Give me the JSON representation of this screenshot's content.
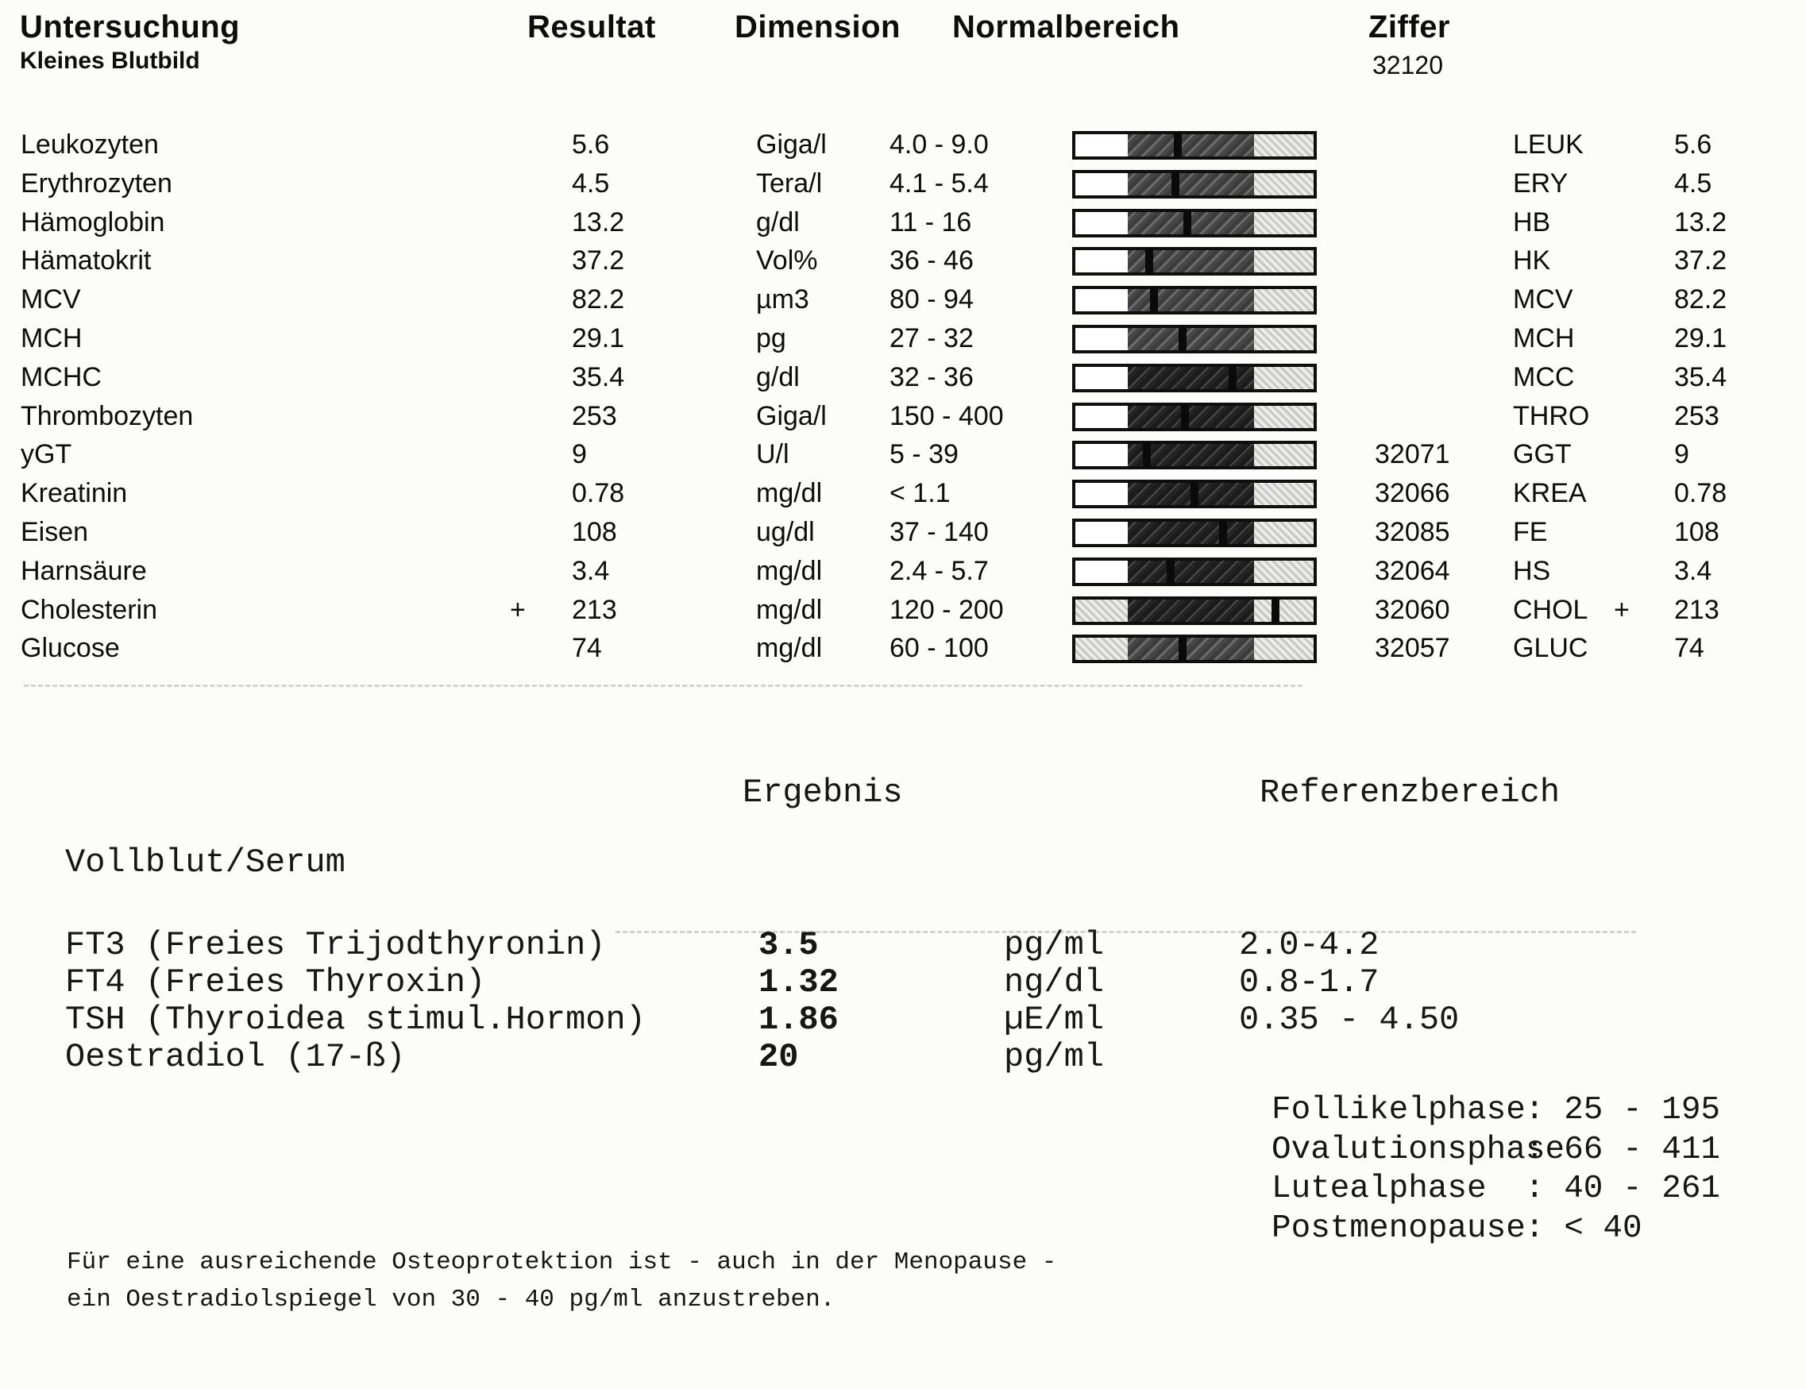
{
  "header": {
    "col_untersuchung": "Untersuchung",
    "subtitle": "Kleines Blutbild",
    "col_resultat": "Resultat",
    "col_dimension": "Dimension",
    "col_normalbereich": "Normalbereich",
    "col_ziffer": "Ziffer",
    "ziffer_value": "32120"
  },
  "blood_table": {
    "rows": [
      {
        "name": "Leukozyten",
        "flag": "",
        "result": "5.6",
        "dimension": "Giga/l",
        "range": "4.0 - 9.0",
        "ziffer": "",
        "code": "LEUK",
        "code_flag": "",
        "code_value": "5.6",
        "marker_pct": 43,
        "dense": false,
        "left_dotted": false
      },
      {
        "name": "Erythrozyten",
        "flag": "",
        "result": "4.5",
        "dimension": "Tera/l",
        "range": "4.1 - 5.4",
        "ziffer": "",
        "code": "ERY",
        "code_flag": "",
        "code_value": "4.5",
        "marker_pct": 42,
        "dense": false,
        "left_dotted": false
      },
      {
        "name": "Hämoglobin",
        "flag": "",
        "result": "13.2",
        "dimension": "g/dl",
        "range": "11 - 16",
        "ziffer": "",
        "code": "HB",
        "code_flag": "",
        "code_value": "13.2",
        "marker_pct": 47,
        "dense": false,
        "left_dotted": false
      },
      {
        "name": "Hämatokrit",
        "flag": "",
        "result": "37.2",
        "dimension": "Vol%",
        "range": "36 - 46",
        "ziffer": "",
        "code": "HK",
        "code_flag": "",
        "code_value": "37.2",
        "marker_pct": 31,
        "dense": false,
        "left_dotted": false
      },
      {
        "name": "MCV",
        "flag": "",
        "result": "82.2",
        "dimension": "µm3",
        "range": "80 - 94",
        "ziffer": "",
        "code": "MCV",
        "code_flag": "",
        "code_value": "82.2",
        "marker_pct": 33,
        "dense": false,
        "left_dotted": false
      },
      {
        "name": "MCH",
        "flag": "",
        "result": "29.1",
        "dimension": "pg",
        "range": "27 - 32",
        "ziffer": "",
        "code": "MCH",
        "code_flag": "",
        "code_value": "29.1",
        "marker_pct": 45,
        "dense": false,
        "left_dotted": false
      },
      {
        "name": "MCHC",
        "flag": "",
        "result": "35.4",
        "dimension": "g/dl",
        "range": "32 - 36",
        "ziffer": "",
        "code": "MCC",
        "code_flag": "",
        "code_value": "35.4",
        "marker_pct": 66,
        "dense": true,
        "left_dotted": false
      },
      {
        "name": "Thrombozyten",
        "flag": "",
        "result": "253",
        "dimension": "Giga/l",
        "range": "150 - 400",
        "ziffer": "",
        "code": "THRO",
        "code_flag": "",
        "code_value": "253",
        "marker_pct": 46,
        "dense": true,
        "left_dotted": false
      },
      {
        "name": "yGT",
        "flag": "",
        "result": "9",
        "dimension": "U/l",
        "range": "5 - 39",
        "ziffer": "32071",
        "code": "GGT",
        "code_flag": "",
        "code_value": "9",
        "marker_pct": 30,
        "dense": true,
        "left_dotted": false
      },
      {
        "name": "Kreatinin",
        "flag": "",
        "result": "0.78",
        "dimension": "mg/dl",
        "range": "< 1.1",
        "ziffer": "32066",
        "code": "KREA",
        "code_flag": "",
        "code_value": "0.78",
        "marker_pct": 50,
        "dense": true,
        "left_dotted": false
      },
      {
        "name": "Eisen",
        "flag": "",
        "result": "108",
        "dimension": "ug/dl",
        "range": "37 - 140",
        "ziffer": "32085",
        "code": "FE",
        "code_flag": "",
        "code_value": "108",
        "marker_pct": 62,
        "dense": true,
        "left_dotted": false
      },
      {
        "name": "Harnsäure",
        "flag": "",
        "result": "3.4",
        "dimension": "mg/dl",
        "range": "2.4 - 5.7",
        "ziffer": "32064",
        "code": "HS",
        "code_flag": "",
        "code_value": "3.4",
        "marker_pct": 40,
        "dense": true,
        "left_dotted": false
      },
      {
        "name": "Cholesterin",
        "flag": "+",
        "result": "213",
        "dimension": "mg/dl",
        "range": "120 - 200",
        "ziffer": "32060",
        "code": "CHOL",
        "code_flag": "+",
        "code_value": "213",
        "marker_pct": 84,
        "dense": true,
        "left_dotted": true
      },
      {
        "name": "Glucose",
        "flag": "",
        "result": "74",
        "dimension": "mg/dl",
        "range": "60 - 100",
        "ziffer": "32057",
        "code": "GLUC",
        "code_flag": "",
        "code_value": "74",
        "marker_pct": 45,
        "dense": false,
        "left_dotted": true
      }
    ]
  },
  "serum_section": {
    "col_ergebnis": "Ergebnis",
    "col_referenzbereich": "Referenzbereich",
    "group_label": "Vollblut/Serum",
    "rows": [
      {
        "name": "FT3 (Freies Trijodthyronin)",
        "result": "3.5",
        "unit": "pg/ml",
        "reference": "2.0-4.2"
      },
      {
        "name": "FT4 (Freies Thyroxin)",
        "result": "1.32",
        "unit": "ng/dl",
        "reference": "0.8-1.7"
      },
      {
        "name": "TSH (Thyroidea stimul.Hormon)",
        "result": "1.86",
        "unit": "µE/ml",
        "reference": "0.35 - 4.50"
      },
      {
        "name": "Oestradiol (17-ß)",
        "result": "20",
        "unit": "pg/ml",
        "reference": ""
      }
    ],
    "oestradiol_phases": [
      {
        "label": "Follikelphase",
        "range": ": 25 - 195"
      },
      {
        "label": "Ovalutionsphase",
        "range": ": 66 - 411"
      },
      {
        "label": "Lutealphase",
        "range": ": 40 - 261"
      },
      {
        "label": "Postmenopause",
        "range": ": < 40"
      }
    ]
  },
  "footer_note": {
    "line1": "Für eine ausreichende Osteoprotektion ist - auch in der Menopause -",
    "line2": "ein Oestradiolspiegel von 30 - 40 pg/ml anzustreben."
  }
}
